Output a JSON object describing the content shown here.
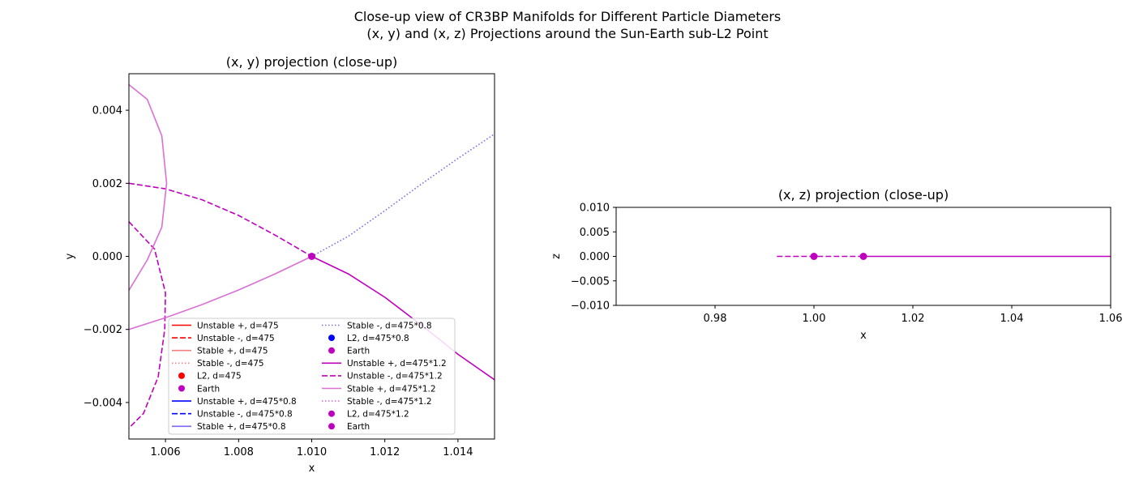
{
  "figure": {
    "title_line1": "Close-up view of CR3BP Manifolds for Different Particle Diameters",
    "title_line2": "(x, y) and (x, z) Projections around the Sun-Earth sub-L2 Point"
  },
  "colors": {
    "d475": {
      "unstable": "#ff0000",
      "stable": "#f08080",
      "point": "#ff0000"
    },
    "d475_08": {
      "unstable": "#0000ff",
      "stable": "#7b68ee",
      "point": "#0000ff"
    },
    "d475_12": {
      "unstable": "#bf00bf",
      "stable": "#da70d6",
      "point": "#bf00bf"
    },
    "earth": "#bf00bf"
  },
  "chart_data": [
    {
      "type": "line",
      "title": "(x, y) projection (close-up)",
      "xlabel": "x",
      "ylabel": "y",
      "xlim": [
        1.005,
        1.015
      ],
      "ylim": [
        -0.005,
        0.005
      ],
      "xticks": [
        1.006,
        1.008,
        1.01,
        1.012,
        1.014
      ],
      "xtick_labels": [
        "1.006",
        "1.008",
        "1.010",
        "1.012",
        "1.014"
      ],
      "yticks": [
        -0.004,
        -0.002,
        0.0,
        0.002,
        0.004
      ],
      "ytick_labels": [
        "−0.004",
        "−0.002",
        "0.000",
        "0.002",
        "0.004"
      ],
      "grid": false,
      "legend_placement": "lower-right",
      "legend": [
        {
          "label": "Unstable +, d=475",
          "kind": "solid",
          "color": "#ff0000"
        },
        {
          "label": "Unstable -, d=475",
          "kind": "dashed",
          "color": "#ff0000"
        },
        {
          "label": "Stable +, d=475",
          "kind": "solid",
          "color": "#f08080"
        },
        {
          "label": "Stable -, d=475",
          "kind": "dotted",
          "color": "#f08080"
        },
        {
          "label": "L2, d=475",
          "kind": "marker",
          "color": "#ff0000"
        },
        {
          "label": "Earth",
          "kind": "marker",
          "color": "#bf00bf"
        },
        {
          "label": "Unstable +, d=475*0.8",
          "kind": "solid",
          "color": "#0000ff"
        },
        {
          "label": "Unstable -, d=475*0.8",
          "kind": "dashed",
          "color": "#0000ff"
        },
        {
          "label": "Stable +, d=475*0.8",
          "kind": "solid",
          "color": "#7b68ee"
        },
        {
          "label": "Stable -, d=475*0.8",
          "kind": "dotted",
          "color": "#7b68ee"
        },
        {
          "label": "L2, d=475*0.8",
          "kind": "marker",
          "color": "#0000ff"
        },
        {
          "label": "Earth",
          "kind": "marker",
          "color": "#bf00bf"
        },
        {
          "label": "Unstable +, d=475*1.2",
          "kind": "solid",
          "color": "#bf00bf"
        },
        {
          "label": "Unstable -, d=475*1.2",
          "kind": "dashed",
          "color": "#bf00bf"
        },
        {
          "label": "Stable +, d=475*1.2",
          "kind": "solid",
          "color": "#da70d6"
        },
        {
          "label": "Stable -, d=475*1.2",
          "kind": "dotted",
          "color": "#da70d6"
        },
        {
          "label": "L2, d=475*1.2",
          "kind": "marker",
          "color": "#bf00bf"
        },
        {
          "label": "Earth",
          "kind": "marker",
          "color": "#bf00bf"
        }
      ],
      "series": [
        {
          "kind": "solid",
          "color": "#bf00bf",
          "x": [
            1.01,
            1.011,
            1.012,
            1.013,
            1.014,
            1.015
          ],
          "y": [
            0.0,
            -0.00048,
            -0.00112,
            -0.00188,
            -0.00268,
            -0.00338
          ]
        },
        {
          "kind": "dashed",
          "color": "#bf00bf",
          "x": [
            1.005,
            1.006,
            1.007,
            1.008,
            1.009,
            1.01
          ],
          "y": [
            0.002,
            0.00185,
            0.00155,
            0.00112,
            0.00058,
            0.0
          ]
        },
        {
          "kind": "dashed",
          "color": "#bf00bf",
          "x": [
            1.005,
            1.0057,
            1.006,
            1.00598,
            1.0058,
            1.0054,
            1.005
          ],
          "y": [
            0.00095,
            0.0002,
            -0.001,
            -0.002,
            -0.0033,
            -0.0043,
            -0.0047
          ]
        },
        {
          "kind": "solid",
          "color": "#da70d6",
          "x": [
            1.005,
            1.006,
            1.007,
            1.008,
            1.009,
            1.01
          ],
          "y": [
            -0.002,
            -0.00168,
            -0.00132,
            -0.00092,
            -0.00048,
            0.0
          ]
        },
        {
          "kind": "solid",
          "color": "#da70d6",
          "x": [
            1.005,
            1.0055,
            1.0059,
            1.00603,
            1.0059,
            1.0055,
            1.005
          ],
          "y": [
            0.0047,
            0.0043,
            0.0033,
            0.002,
            0.0008,
            -0.0001,
            -0.00093
          ]
        },
        {
          "kind": "dotted",
          "color": "#7b68ee",
          "x": [
            1.01,
            1.011,
            1.012,
            1.013,
            1.014,
            1.015
          ],
          "y": [
            0.0,
            0.00055,
            0.00125,
            0.00198,
            0.00268,
            0.00335
          ]
        }
      ],
      "points": [
        {
          "name": "L2",
          "x": 1.01,
          "y": 0.0,
          "color": "#bf00bf"
        }
      ]
    },
    {
      "type": "line",
      "title": "(x, z) projection (close-up)",
      "xlabel": "x",
      "ylabel": "z",
      "xlim": [
        0.96,
        1.06
      ],
      "ylim": [
        -0.01,
        0.01
      ],
      "xticks": [
        0.98,
        1.0,
        1.02,
        1.04,
        1.06
      ],
      "xtick_labels": [
        "0.98",
        "1.00",
        "1.02",
        "1.04",
        "1.06"
      ],
      "yticks": [
        -0.01,
        -0.005,
        0.0,
        0.005,
        0.01
      ],
      "ytick_labels": [
        "−0.010",
        "−0.005",
        "0.000",
        "0.005",
        "0.010"
      ],
      "grid": false,
      "series": [
        {
          "kind": "dashed",
          "color": "#bf00bf",
          "x": [
            0.9925,
            1.01
          ],
          "y": [
            0.0,
            0.0
          ]
        },
        {
          "kind": "solid",
          "color": "#bf00bf",
          "x": [
            1.01,
            1.06
          ],
          "y": [
            0.0,
            0.0
          ]
        }
      ],
      "points": [
        {
          "name": "Earth",
          "x": 1.0,
          "y": 0.0,
          "color": "#bf00bf"
        },
        {
          "name": "L2",
          "x": 1.01,
          "y": 0.0,
          "color": "#bf00bf"
        }
      ]
    }
  ]
}
